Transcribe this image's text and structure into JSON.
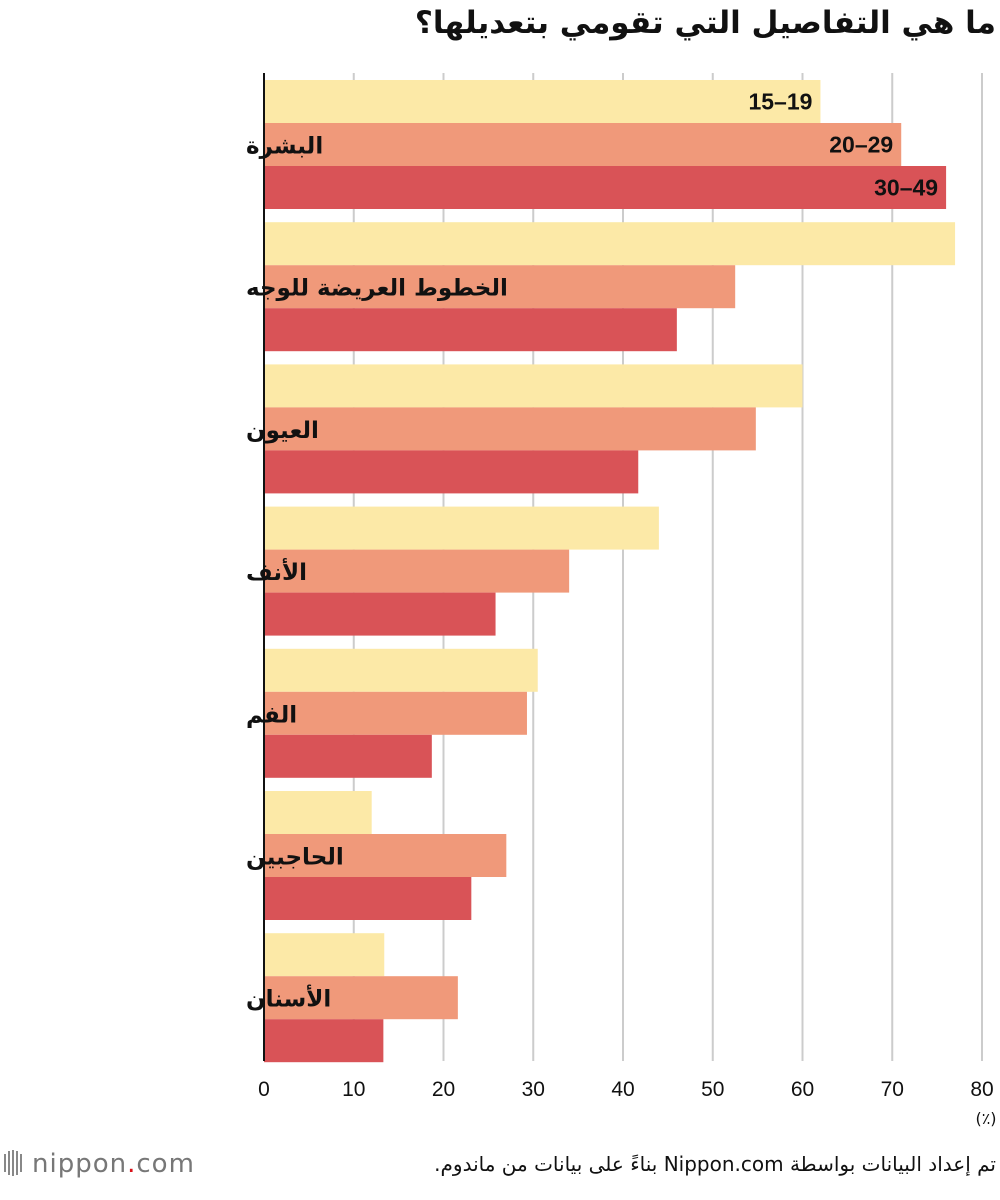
{
  "title": "ما هي التفاصيل التي تقومي بتعديلها؟",
  "source": "تم إعداد البيانات بواسطة Nippon.com بناءً على بيانات من ماندوم.",
  "logo": {
    "brand": "nippon",
    "dot": ".",
    "suffix": "com",
    "icon": "barcode-logo-icon"
  },
  "colors": {
    "series_15_19": "#fce9a7",
    "series_20_29": "#f0997a",
    "series_30_49": "#d95357",
    "grid": "#cccccc",
    "logo_dot": "#d9121a"
  },
  "chart_data": {
    "type": "bar",
    "orientation": "horizontal",
    "categories": [
      "البشرة",
      "الخطوط العريضة للوجه",
      "العيون",
      "الأنف",
      "الفم",
      "الحاجبين",
      "الأسنان"
    ],
    "series": [
      {
        "name": "15–19",
        "values": [
          62,
          77,
          60,
          44,
          30.5,
          12,
          13.4
        ]
      },
      {
        "name": "20–29",
        "values": [
          71,
          52.5,
          54.8,
          34,
          29.3,
          27,
          21.6
        ]
      },
      {
        "name": "30–49",
        "values": [
          76,
          46,
          41.7,
          25.8,
          18.7,
          23.1,
          13.3
        ]
      }
    ],
    "xlim": [
      0,
      80
    ],
    "xticks": [
      "0",
      "10",
      "20",
      "30",
      "40",
      "50",
      "60",
      "70",
      "80"
    ],
    "xunit": "(٪)",
    "grid": true,
    "legend": "inline labels inside first category bars"
  }
}
